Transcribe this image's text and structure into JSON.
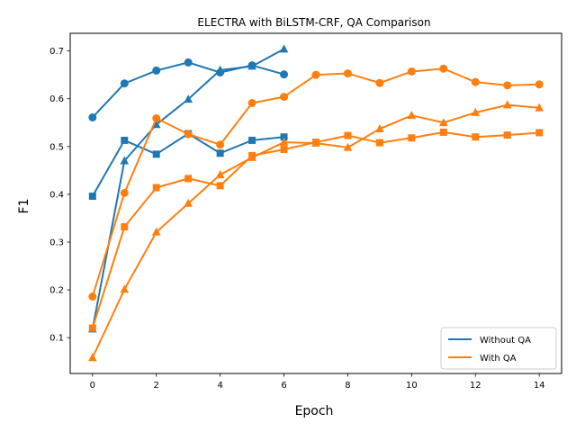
{
  "chart_data": {
    "type": "line",
    "title": "ELECTRA with BiLSTM-CRF, QA Comparison",
    "xlabel": "Epoch",
    "ylabel": "F1",
    "xlim": [
      -0.7,
      14.7
    ],
    "ylim": [
      0.025,
      0.737
    ],
    "xticks": [
      0,
      2,
      4,
      6,
      8,
      10,
      12,
      14
    ],
    "yticks": [
      0.1,
      0.2,
      0.3,
      0.4,
      0.5,
      0.6,
      0.7
    ],
    "grid": false,
    "legend_position": "lower-right",
    "colors": {
      "without_qa": "#1f77b4",
      "with_qa": "#ff7f0e"
    },
    "legend": [
      {
        "label": "Without QA",
        "color": "#1f77b4"
      },
      {
        "label": "With QA",
        "color": "#ff7f0e"
      }
    ],
    "series": [
      {
        "group": "Without QA",
        "marker": "circle",
        "color": "#1f77b4",
        "x": [
          0,
          1,
          2,
          3,
          4,
          5,
          6
        ],
        "y": [
          0.561,
          0.632,
          0.659,
          0.676,
          0.655,
          0.67,
          0.651
        ]
      },
      {
        "group": "Without QA",
        "marker": "square",
        "color": "#1f77b4",
        "x": [
          0,
          1,
          2,
          3,
          4,
          5,
          6
        ],
        "y": [
          0.396,
          0.513,
          0.484,
          0.527,
          0.486,
          0.513,
          0.52
        ]
      },
      {
        "group": "Without QA",
        "marker": "triangle",
        "color": "#1f77b4",
        "x": [
          0,
          1,
          2,
          3,
          4,
          5,
          6
        ],
        "y": [
          0.118,
          0.47,
          0.546,
          0.599,
          0.66,
          0.668,
          0.704
        ]
      },
      {
        "group": "With QA",
        "marker": "circle",
        "color": "#ff7f0e",
        "x": [
          0,
          1,
          2,
          3,
          4,
          5,
          6,
          7,
          8,
          9,
          10,
          11,
          12,
          13,
          14
        ],
        "y": [
          0.186,
          0.403,
          0.559,
          0.526,
          0.504,
          0.591,
          0.604,
          0.65,
          0.653,
          0.633,
          0.657,
          0.663,
          0.635,
          0.628,
          0.63
        ]
      },
      {
        "group": "With QA",
        "marker": "square",
        "color": "#ff7f0e",
        "x": [
          0,
          1,
          2,
          3,
          4,
          5,
          6,
          7,
          8,
          9,
          10,
          11,
          12,
          13,
          14
        ],
        "y": [
          0.12,
          0.332,
          0.414,
          0.433,
          0.418,
          0.481,
          0.494,
          0.509,
          0.523,
          0.508,
          0.518,
          0.53,
          0.52,
          0.524,
          0.529
        ]
      },
      {
        "group": "With QA",
        "marker": "triangle",
        "color": "#ff7f0e",
        "x": [
          0,
          1,
          2,
          3,
          4,
          5,
          6,
          7,
          8,
          9,
          10,
          11,
          12,
          13,
          14
        ],
        "y": [
          0.058,
          0.201,
          0.321,
          0.381,
          0.441,
          0.477,
          0.509,
          0.507,
          0.498,
          0.537,
          0.565,
          0.55,
          0.571,
          0.587,
          0.581
        ]
      }
    ]
  }
}
